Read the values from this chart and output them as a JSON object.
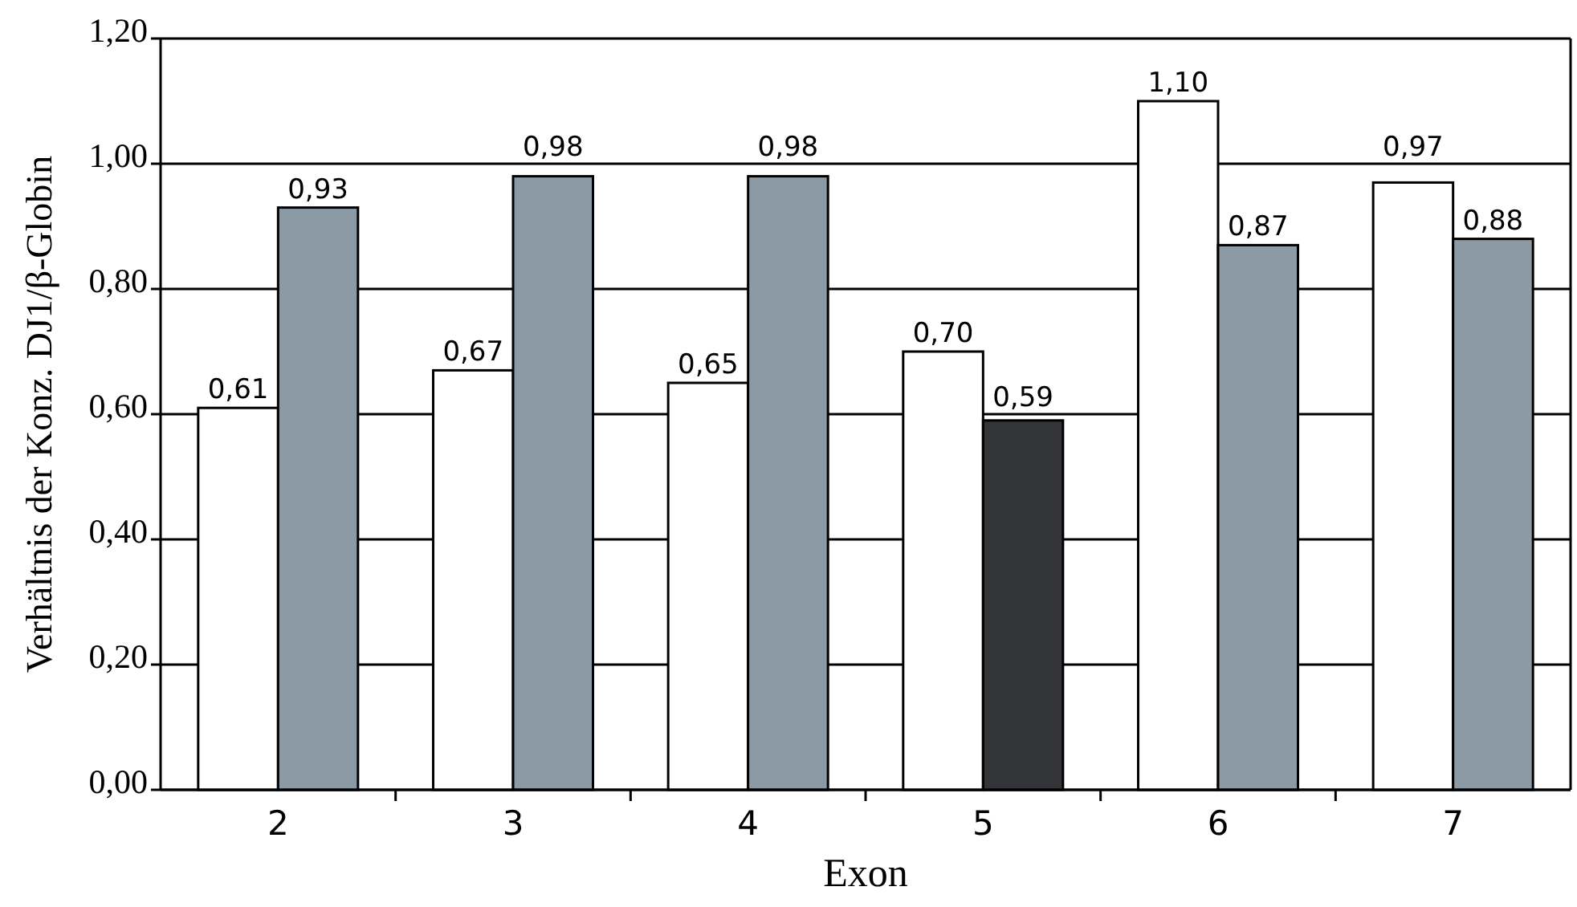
{
  "chart_data": {
    "type": "bar",
    "xlabel": "Exon",
    "ylabel": "Verhältnis der Konz. DJ1/β-Globin",
    "categories": [
      "2",
      "3",
      "4",
      "5",
      "6",
      "7"
    ],
    "series": [
      {
        "color": "#ffffff",
        "values": [
          0.61,
          0.67,
          0.65,
          0.7,
          1.1,
          0.97
        ],
        "value_labels": [
          "0,61",
          "0,67",
          "0,65",
          "0,70",
          "1,10",
          "0,97"
        ]
      },
      {
        "color": "#8c9aa6",
        "colors": [
          null,
          null,
          null,
          "#333538",
          null,
          null
        ],
        "values": [
          0.93,
          0.98,
          0.98,
          0.59,
          0.87,
          0.88
        ],
        "value_labels": [
          "0,93",
          "0,98",
          "0,98",
          "0,59",
          "0,87",
          "0,88"
        ]
      }
    ],
    "ylim": [
      0,
      1.2
    ],
    "yticks": [
      {
        "value": 0,
        "label": "0,00"
      },
      {
        "value": 0.2,
        "label": "0,20"
      },
      {
        "value": 0.4,
        "label": "0,40"
      },
      {
        "value": 0.6,
        "label": "0,60"
      },
      {
        "value": 0.8,
        "label": "0,80"
      },
      {
        "value": 1,
        "label": "1,00"
      },
      {
        "value": 1.2,
        "label": "1,20"
      }
    ],
    "grid": "y"
  }
}
